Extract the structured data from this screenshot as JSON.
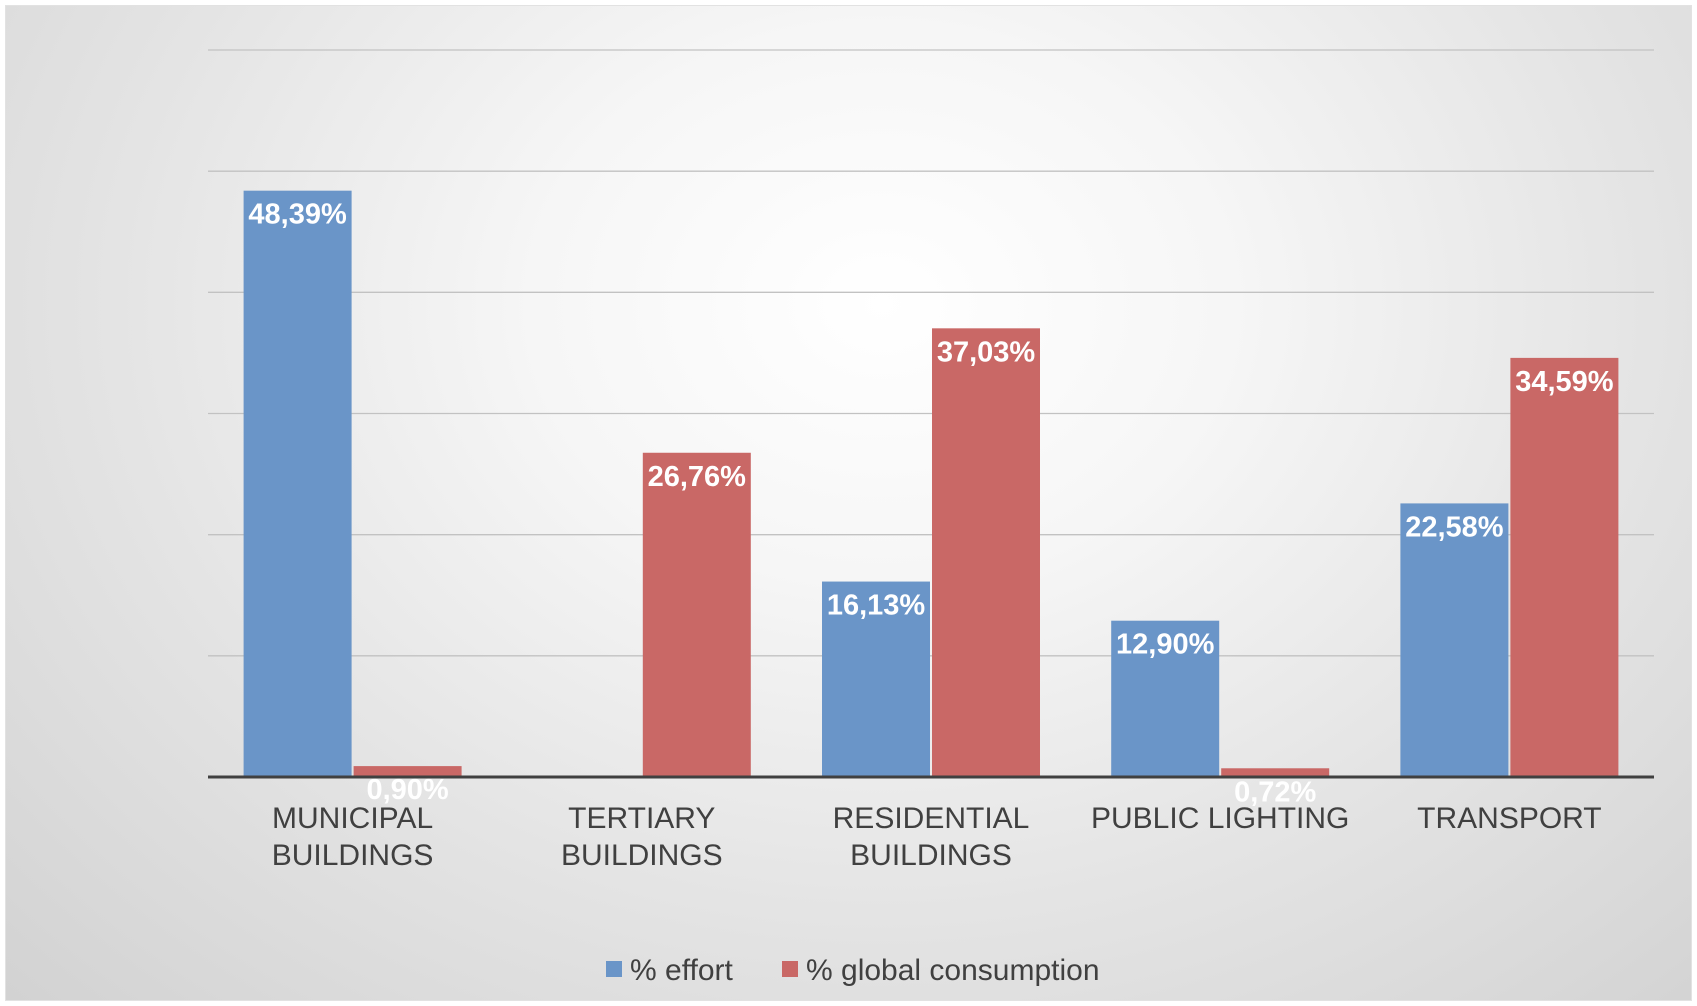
{
  "chart_data": {
    "type": "bar",
    "categories": [
      [
        "MUNICIPAL",
        "BUILDINGS"
      ],
      [
        "TERTIARY",
        "BUILDINGS"
      ],
      [
        "RESIDENTIAL",
        "BUILDINGS"
      ],
      [
        "PUBLIC LIGHTING"
      ],
      [
        "TRANSPORT"
      ]
    ],
    "series": [
      {
        "name": "% effort",
        "color": "#6a95c8",
        "values": [
          48.39,
          0,
          16.13,
          12.9,
          22.58
        ],
        "labels": [
          "48,39%",
          "",
          "16,13%",
          "12,90%",
          "22,58%"
        ]
      },
      {
        "name": "% global consumption",
        "color": "#c96866",
        "values": [
          0.9,
          26.76,
          37.03,
          0.72,
          34.59
        ],
        "labels": [
          "0,90%",
          "26,76%",
          "37,03%",
          "0,72%",
          "34,59%"
        ]
      }
    ],
    "ylim": [
      0,
      60
    ],
    "gridlines": true,
    "legend": "bottom",
    "title": "",
    "xlabel": "",
    "ylabel": ""
  }
}
